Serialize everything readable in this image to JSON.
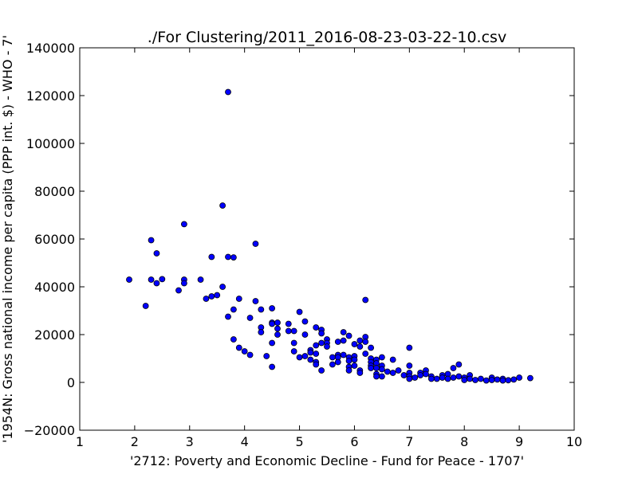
{
  "chart_data": {
    "type": "scatter",
    "title": "./For Clustering/2011_2016-08-23-03-22-10.csv",
    "xlabel": "'2712: Poverty and Economic Decline - Fund for Peace - 1707'",
    "ylabel": "'1954N: Gross national income per capita (PPP int. $) - WHO - 7'",
    "xlim": [
      1,
      10
    ],
    "ylim": [
      -20000,
      140000
    ],
    "xticks": [
      "1",
      "2",
      "3",
      "4",
      "5",
      "6",
      "7",
      "8",
      "9",
      "10"
    ],
    "yticks": [
      "−20000",
      "0",
      "20000",
      "40000",
      "60000",
      "80000",
      "100000",
      "120000",
      "140000"
    ],
    "grid": false,
    "marker_color": "#0000ff",
    "marker_edge_color": "#000000",
    "points": [
      [
        1.9,
        43000
      ],
      [
        2.2,
        32000
      ],
      [
        2.3,
        59500
      ],
      [
        2.3,
        43000
      ],
      [
        2.4,
        54000
      ],
      [
        2.4,
        41500
      ],
      [
        2.5,
        43200
      ],
      [
        2.8,
        38500
      ],
      [
        2.9,
        66200
      ],
      [
        2.9,
        43000
      ],
      [
        2.9,
        41500
      ],
      [
        3.2,
        43000
      ],
      [
        3.3,
        35000
      ],
      [
        3.4,
        52500
      ],
      [
        3.4,
        36000
      ],
      [
        3.5,
        36500
      ],
      [
        3.6,
        74000
      ],
      [
        3.6,
        40000
      ],
      [
        3.7,
        121500
      ],
      [
        3.7,
        52500
      ],
      [
        3.7,
        27500
      ],
      [
        3.8,
        52300
      ],
      [
        3.8,
        30500
      ],
      [
        3.8,
        18000
      ],
      [
        3.9,
        35000
      ],
      [
        3.9,
        14500
      ],
      [
        4.0,
        13000
      ],
      [
        4.1,
        27000
      ],
      [
        4.1,
        11500
      ],
      [
        4.2,
        58000
      ],
      [
        4.2,
        34000
      ],
      [
        4.3,
        30500
      ],
      [
        4.3,
        23000
      ],
      [
        4.3,
        21000
      ],
      [
        4.4,
        11000
      ],
      [
        4.5,
        31000
      ],
      [
        4.5,
        25000
      ],
      [
        4.5,
        24500
      ],
      [
        4.5,
        16500
      ],
      [
        4.5,
        6500
      ],
      [
        4.6,
        25000
      ],
      [
        4.6,
        22500
      ],
      [
        4.6,
        20000
      ],
      [
        4.8,
        24500
      ],
      [
        4.8,
        21500
      ],
      [
        4.9,
        21500
      ],
      [
        4.9,
        16500
      ],
      [
        4.9,
        13000
      ],
      [
        5.0,
        29500
      ],
      [
        5.0,
        10500
      ],
      [
        5.1,
        25500
      ],
      [
        5.1,
        20000
      ],
      [
        5.1,
        11000
      ],
      [
        5.2,
        13500
      ],
      [
        5.2,
        12500
      ],
      [
        5.2,
        9500
      ],
      [
        5.3,
        23000
      ],
      [
        5.3,
        15500
      ],
      [
        5.3,
        12000
      ],
      [
        5.3,
        8500
      ],
      [
        5.3,
        7500
      ],
      [
        5.4,
        22000
      ],
      [
        5.4,
        20500
      ],
      [
        5.4,
        16500
      ],
      [
        5.4,
        5000
      ],
      [
        5.5,
        18000
      ],
      [
        5.5,
        16500
      ],
      [
        5.5,
        15000
      ],
      [
        5.6,
        10500
      ],
      [
        5.6,
        7500
      ],
      [
        5.7,
        17000
      ],
      [
        5.7,
        11500
      ],
      [
        5.7,
        10500
      ],
      [
        5.7,
        8500
      ],
      [
        5.8,
        21000
      ],
      [
        5.8,
        17500
      ],
      [
        5.8,
        11500
      ],
      [
        5.9,
        19500
      ],
      [
        5.9,
        10500
      ],
      [
        5.9,
        9000
      ],
      [
        5.9,
        6500
      ],
      [
        5.9,
        5000
      ],
      [
        6.0,
        16000
      ],
      [
        6.0,
        11000
      ],
      [
        6.0,
        9500
      ],
      [
        6.0,
        7000
      ],
      [
        6.1,
        17500
      ],
      [
        6.1,
        15000
      ],
      [
        6.1,
        5000
      ],
      [
        6.1,
        4000
      ],
      [
        6.2,
        34500
      ],
      [
        6.2,
        19000
      ],
      [
        6.2,
        17000
      ],
      [
        6.2,
        12000
      ],
      [
        6.3,
        14500
      ],
      [
        6.3,
        10000
      ],
      [
        6.3,
        8500
      ],
      [
        6.3,
        7000
      ],
      [
        6.3,
        6000
      ],
      [
        6.4,
        9500
      ],
      [
        6.4,
        8000
      ],
      [
        6.4,
        6000
      ],
      [
        6.4,
        3500
      ],
      [
        6.4,
        2500
      ],
      [
        6.5,
        10500
      ],
      [
        6.5,
        7000
      ],
      [
        6.5,
        5500
      ],
      [
        6.5,
        2500
      ],
      [
        6.6,
        4500
      ],
      [
        6.7,
        9500
      ],
      [
        6.7,
        4000
      ],
      [
        6.8,
        5000
      ],
      [
        6.9,
        3000
      ],
      [
        7.0,
        14500
      ],
      [
        7.0,
        7000
      ],
      [
        7.0,
        4000
      ],
      [
        7.0,
        2500
      ],
      [
        7.0,
        1500
      ],
      [
        7.1,
        2000
      ],
      [
        7.2,
        4000
      ],
      [
        7.2,
        3000
      ],
      [
        7.3,
        5000
      ],
      [
        7.3,
        3500
      ],
      [
        7.4,
        2500
      ],
      [
        7.4,
        1500
      ],
      [
        7.5,
        1500
      ],
      [
        7.6,
        3000
      ],
      [
        7.6,
        2000
      ],
      [
        7.7,
        3500
      ],
      [
        7.7,
        1500
      ],
      [
        7.8,
        6000
      ],
      [
        7.8,
        2000
      ],
      [
        7.9,
        7500
      ],
      [
        7.9,
        2500
      ],
      [
        8.0,
        2000
      ],
      [
        8.0,
        1000
      ],
      [
        8.1,
        3000
      ],
      [
        8.1,
        1500
      ],
      [
        8.2,
        1000
      ],
      [
        8.3,
        1500
      ],
      [
        8.4,
        800
      ],
      [
        8.5,
        2000
      ],
      [
        8.5,
        1000
      ],
      [
        8.6,
        1200
      ],
      [
        8.7,
        1500
      ],
      [
        8.7,
        800
      ],
      [
        8.8,
        900
      ],
      [
        8.9,
        1200
      ],
      [
        9.0,
        2000
      ],
      [
        9.2,
        1800
      ]
    ]
  }
}
